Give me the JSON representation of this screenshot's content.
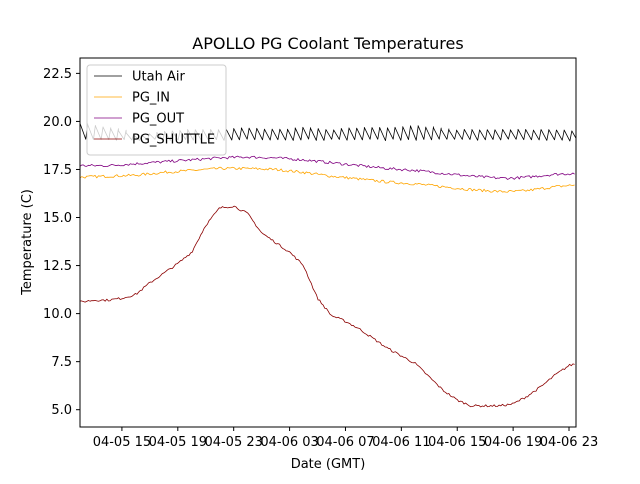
{
  "chart_data": {
    "type": "line",
    "title": "APOLLO PG Coolant Temperatures",
    "xlabel": "Date (GMT)",
    "ylabel": "Temperature (C)",
    "xlim": [
      12,
      47.5
    ],
    "ylim": [
      4.1,
      23.3
    ],
    "x_unit": "hours since 04-05 00:00 GMT",
    "xticks": [
      {
        "value": 15,
        "label": "04-05 15"
      },
      {
        "value": 19,
        "label": "04-05 19"
      },
      {
        "value": 23,
        "label": "04-05 23"
      },
      {
        "value": 27,
        "label": "04-06 03"
      },
      {
        "value": 31,
        "label": "04-06 07"
      },
      {
        "value": 35,
        "label": "04-06 11"
      },
      {
        "value": 39,
        "label": "04-06 15"
      },
      {
        "value": 43,
        "label": "04-06 19"
      },
      {
        "value": 47,
        "label": "04-06 23"
      }
    ],
    "yticks": [
      {
        "value": 5.0,
        "label": "5.0"
      },
      {
        "value": 7.5,
        "label": "7.5"
      },
      {
        "value": 10.0,
        "label": "10.0"
      },
      {
        "value": 12.5,
        "label": "12.5"
      },
      {
        "value": 15.0,
        "label": "15.0"
      },
      {
        "value": 17.5,
        "label": "17.5"
      },
      {
        "value": 20.0,
        "label": "20.0"
      },
      {
        "value": 22.5,
        "label": "22.5"
      }
    ],
    "grid": false,
    "legend_position": "top-left",
    "series": [
      {
        "name": "Utah Air",
        "color": "#000000",
        "style": "sawtooth",
        "x": [
          12,
          14,
          16,
          18,
          20,
          22,
          24,
          26,
          28,
          30,
          32,
          34,
          36,
          38,
          40,
          42,
          44,
          46,
          47.5
        ],
        "low": [
          19.0,
          19.0,
          19.0,
          19.0,
          19.0,
          19.0,
          19.0,
          19.0,
          19.0,
          19.0,
          19.0,
          19.0,
          19.0,
          19.0,
          19.0,
          19.0,
          19.0,
          19.0,
          18.9
        ],
        "high": [
          19.9,
          19.7,
          19.3,
          19.5,
          19.6,
          19.6,
          19.7,
          19.6,
          19.7,
          19.6,
          19.7,
          19.7,
          19.8,
          19.6,
          19.6,
          19.6,
          19.6,
          19.6,
          19.5
        ]
      },
      {
        "name": "PG_IN",
        "color": "#FFA500",
        "x": [
          12,
          14,
          16,
          18,
          20,
          22,
          24,
          26,
          28,
          30,
          32,
          34,
          36,
          38,
          40,
          42,
          43,
          44,
          46,
          47.5
        ],
        "y": [
          17.1,
          17.15,
          17.2,
          17.35,
          17.45,
          17.55,
          17.55,
          17.5,
          17.35,
          17.15,
          17.0,
          16.85,
          16.75,
          16.6,
          16.45,
          16.35,
          16.35,
          16.4,
          16.6,
          16.7
        ]
      },
      {
        "name": "PG_OUT",
        "color": "#800080",
        "x": [
          12,
          14,
          16,
          18,
          20,
          22,
          24,
          26,
          28,
          30,
          32,
          34,
          36,
          38,
          40,
          42,
          43,
          44,
          46,
          47.5
        ],
        "y": [
          17.7,
          17.7,
          17.8,
          17.9,
          18.0,
          18.1,
          18.15,
          18.1,
          18.0,
          17.85,
          17.7,
          17.55,
          17.45,
          17.3,
          17.15,
          17.05,
          17.05,
          17.1,
          17.25,
          17.3
        ]
      },
      {
        "name": "PG_SHUTTLE",
        "color": "#8B0000",
        "x": [
          12,
          13,
          14,
          15,
          16,
          17,
          18,
          19,
          20,
          21,
          22,
          23,
          24,
          25,
          26,
          27,
          28,
          29,
          30,
          31,
          32,
          33,
          34,
          35,
          36,
          37,
          38,
          39,
          40,
          41,
          42,
          43,
          44,
          45,
          46,
          47,
          47.5
        ],
        "y": [
          10.6,
          10.7,
          10.7,
          10.8,
          11.0,
          11.6,
          12.1,
          12.6,
          13.2,
          14.6,
          15.5,
          15.6,
          15.2,
          14.2,
          13.7,
          13.2,
          12.5,
          10.8,
          9.9,
          9.6,
          9.2,
          8.7,
          8.2,
          7.8,
          7.4,
          6.7,
          6.0,
          5.5,
          5.2,
          5.2,
          5.2,
          5.3,
          5.7,
          6.2,
          6.8,
          7.3,
          7.4
        ]
      }
    ]
  }
}
